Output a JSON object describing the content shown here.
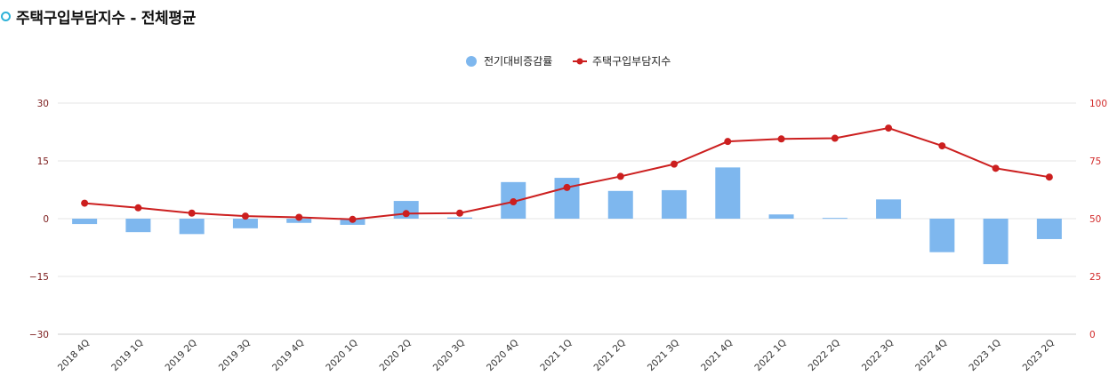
{
  "header": {
    "title": "주택구입부담지수 - 전체평균",
    "bullet_icon": "circle-bullet-icon"
  },
  "colors": {
    "bar": "#7eb7ee",
    "line": "#cc1f1f",
    "left_tick": "#7a1a1a",
    "right_tick": "#d22b2b",
    "grid": "#e6e6e6"
  },
  "chart_data": {
    "type": "bar",
    "title": "주택구입부담지수 - 전체평균",
    "legend_position": "top-center",
    "grid": true,
    "categories": [
      "2018 4Q",
      "2019 1Q",
      "2019 2Q",
      "2019 3Q",
      "2019 4Q",
      "2020 1Q",
      "2020 2Q",
      "2020 3Q",
      "2020 4Q",
      "2021 1Q",
      "2021 2Q",
      "2021 3Q",
      "2021 4Q",
      "2022 1Q",
      "2022 2Q",
      "2022 3Q",
      "2022 4Q",
      "2023 1Q",
      "2023 2Q"
    ],
    "series": [
      {
        "name": "전기대비증감률",
        "type": "bar",
        "axis": "left",
        "values": [
          -1.4,
          -3.5,
          -4.0,
          -2.5,
          -1.1,
          -1.6,
          4.6,
          0.3,
          9.5,
          10.6,
          7.2,
          7.4,
          13.3,
          1.1,
          0.2,
          5.0,
          -8.7,
          -11.8,
          -5.3
        ]
      },
      {
        "name": "주택구입부담지수",
        "type": "line",
        "axis": "right",
        "values": [
          56.7,
          54.7,
          52.4,
          51.1,
          50.6,
          49.7,
          52.2,
          52.4,
          57.3,
          63.5,
          68.3,
          73.6,
          83.4,
          84.5,
          84.8,
          89.2,
          81.5,
          71.8,
          68.0
        ]
      }
    ],
    "y_left": {
      "ylim": [
        -30,
        30
      ],
      "ticks": [
        "30",
        "15",
        "0",
        "−15",
        "−30"
      ]
    },
    "y_right": {
      "ylim": [
        0,
        100
      ],
      "ticks": [
        "100",
        "75",
        "50",
        "25",
        "0"
      ]
    }
  }
}
